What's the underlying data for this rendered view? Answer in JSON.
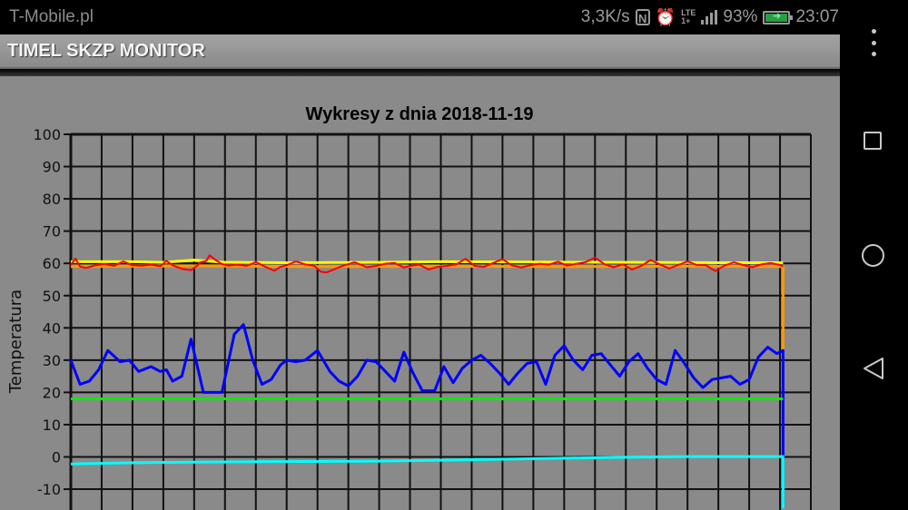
{
  "status_bar": {
    "carrier": "T-Mobile.pl",
    "network_speed": "3,3K/s",
    "nfc_icon": "N",
    "lte_label_top": "LTE",
    "lte_label_bottom": "1+",
    "battery_percent": "93%",
    "time": "23:07",
    "battery_color": "#27a043"
  },
  "app_bar": {
    "title": "TIMEL SKZP MONITOR"
  },
  "nav_bar": {
    "icons": [
      "overflow-menu-icon",
      "recent-apps-icon",
      "home-icon",
      "back-icon"
    ]
  },
  "chart_data": {
    "type": "line",
    "title": "Wykresy z dnia 2018-11-19",
    "xlabel": "",
    "ylabel": "Temperatura",
    "ylim": [
      -16,
      100
    ],
    "yticks": [
      100,
      90,
      80,
      70,
      60,
      50,
      40,
      30,
      20,
      10,
      0,
      -10
    ],
    "x_divisions": 24,
    "grid": true,
    "x_note": "x in grid-column units (0 = left axis, 24 = right edge); no x tick labels visible",
    "series": [
      {
        "name": "yellow",
        "color": "#ffff00",
        "width": 3,
        "x": [
          0,
          2,
          3,
          4,
          5,
          7,
          10,
          12,
          15,
          18,
          21,
          23.1
        ],
        "values": [
          60.5,
          60.5,
          60.3,
          61,
          60.3,
          60.2,
          60.3,
          60.5,
          60.4,
          60.3,
          60.2,
          60.2
        ]
      },
      {
        "name": "orange",
        "color": "#ff9900",
        "width": 3,
        "x": [
          0,
          4,
          8,
          12,
          16,
          20,
          23.1,
          23.1
        ],
        "values": [
          59,
          59.2,
          59,
          59.1,
          59,
          59.1,
          59,
          33
        ]
      },
      {
        "name": "red",
        "color": "#ff0000",
        "width": 2,
        "x": [
          0,
          0.15,
          0.3,
          0.5,
          0.8,
          1.1,
          1.4,
          1.7,
          2.0,
          2.3,
          2.6,
          2.9,
          3.1,
          3.3,
          3.6,
          3.9,
          4.1,
          4.2,
          4.4,
          4.5,
          4.7,
          4.9,
          5.1,
          5.4,
          5.7,
          6.0,
          6.3,
          6.6,
          6.8,
          7.0,
          7.3,
          7.6,
          7.9,
          8.1,
          8.3,
          8.6,
          8.9,
          9.2,
          9.4,
          9.6,
          9.9,
          10.2,
          10.5,
          10.8,
          11.0,
          11.3,
          11.6,
          11.9,
          12.2,
          12.5,
          12.8,
          13.1,
          13.4,
          13.7,
          14.0,
          14.3,
          14.6,
          14.9,
          15.2,
          15.5,
          15.8,
          16.1,
          16.4,
          16.7,
          17.0,
          17.3,
          17.6,
          17.9,
          18.2,
          18.5,
          18.8,
          19.1,
          19.4,
          19.7,
          20.0,
          20.3,
          20.6,
          20.9,
          21.2,
          21.5,
          21.8,
          22.1,
          22.4,
          22.7,
          23.0,
          23.1
        ],
        "values": [
          59.5,
          61.5,
          59,
          58.6,
          59.4,
          59.8,
          59.2,
          60.6,
          59.4,
          59.3,
          59.6,
          59.1,
          60.8,
          59.4,
          58.3,
          57.9,
          59.3,
          60.3,
          60.8,
          62.5,
          61,
          59.8,
          59.3,
          59.6,
          59.2,
          60.4,
          59,
          57.7,
          58.9,
          59.4,
          60.6,
          59.7,
          59.2,
          57.4,
          57.2,
          58.4,
          59.5,
          60.3,
          59.6,
          58.8,
          59.2,
          59.9,
          60.1,
          58.7,
          59.2,
          59.6,
          58.1,
          58.9,
          59.2,
          59.7,
          61.4,
          59.2,
          58.9,
          60.1,
          61.3,
          59.4,
          58.7,
          59.4,
          59.9,
          59.6,
          60.5,
          59.3,
          59.9,
          60.4,
          61.8,
          59.8,
          58.8,
          59.7,
          58.1,
          59.2,
          61.0,
          59.7,
          58.4,
          59.5,
          60.6,
          59.5,
          59.4,
          57.6,
          59.3,
          60.3,
          59.5,
          58.8,
          59.7,
          60.1,
          59.5,
          59
        ]
      },
      {
        "name": "blue",
        "color": "#0000ff",
        "width": 3,
        "x": [
          0,
          0.3,
          0.6,
          0.9,
          1.2,
          1.6,
          1.9,
          2.2,
          2.6,
          2.9,
          3.1,
          3.3,
          3.6,
          3.9,
          4.3,
          4.6,
          4.9,
          5.3,
          5.6,
          5.9,
          6.2,
          6.5,
          6.8,
          7.0,
          7.3,
          7.6,
          8.0,
          8.4,
          8.7,
          9.0,
          9.3,
          9.6,
          9.9,
          10.2,
          10.5,
          10.8,
          11.1,
          11.4,
          11.8,
          12.1,
          12.4,
          12.7,
          13.0,
          13.3,
          13.6,
          13.9,
          14.2,
          14.5,
          14.8,
          15.1,
          15.4,
          15.7,
          16.0,
          16.3,
          16.6,
          16.9,
          17.2,
          17.5,
          17.8,
          18.1,
          18.4,
          18.7,
          19.0,
          19.3,
          19.6,
          19.9,
          20.2,
          20.5,
          20.8,
          21.1,
          21.4,
          21.7,
          22.0,
          22.3,
          22.6,
          22.9,
          23.1,
          23.1
        ],
        "values": [
          30,
          22.5,
          23.5,
          27,
          33,
          29.5,
          30,
          26.5,
          28,
          26.5,
          27,
          23.5,
          25,
          36.5,
          20,
          20,
          20,
          38,
          41,
          30,
          22.5,
          24,
          28.5,
          30,
          29.5,
          30,
          33,
          26.5,
          23.5,
          22,
          25,
          30,
          29.5,
          26.5,
          23.5,
          32.5,
          26,
          20.5,
          20.5,
          28,
          23,
          27.5,
          30,
          31.5,
          29,
          26,
          22.5,
          26,
          29,
          29.5,
          22.5,
          31.5,
          34.5,
          30,
          27,
          31.5,
          32,
          28.5,
          25,
          29.5,
          32,
          27.5,
          24,
          22.5,
          33,
          29,
          24.5,
          21.5,
          24,
          24.5,
          25,
          22.5,
          24,
          31,
          34,
          32,
          33,
          -16
        ]
      },
      {
        "name": "green",
        "color": "#00ee00",
        "width": 3,
        "x": [
          0,
          23.1
        ],
        "values": [
          18,
          18
        ]
      },
      {
        "name": "cyan",
        "color": "#00ffff",
        "width": 3,
        "x": [
          0,
          2,
          4,
          6,
          8,
          10,
          12,
          14,
          16,
          18,
          20,
          23.1,
          23.1
        ],
        "values": [
          -2.2,
          -1.8,
          -1.6,
          -1.5,
          -1.4,
          -1.3,
          -1.0,
          -0.7,
          -0.4,
          -0.1,
          0.1,
          0.1,
          -16
        ]
      }
    ]
  }
}
